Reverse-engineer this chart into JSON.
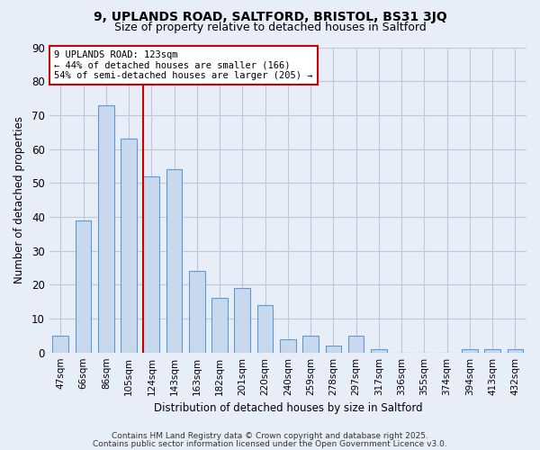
{
  "title1": "9, UPLANDS ROAD, SALTFORD, BRISTOL, BS31 3JQ",
  "title2": "Size of property relative to detached houses in Saltford",
  "xlabel": "Distribution of detached houses by size in Saltford",
  "ylabel": "Number of detached properties",
  "categories": [
    "47sqm",
    "66sqm",
    "86sqm",
    "105sqm",
    "124sqm",
    "143sqm",
    "163sqm",
    "182sqm",
    "201sqm",
    "220sqm",
    "240sqm",
    "259sqm",
    "278sqm",
    "297sqm",
    "317sqm",
    "336sqm",
    "355sqm",
    "374sqm",
    "394sqm",
    "413sqm",
    "432sqm"
  ],
  "values": [
    5,
    39,
    73,
    63,
    52,
    54,
    24,
    16,
    19,
    14,
    4,
    5,
    2,
    5,
    1,
    0,
    0,
    0,
    1,
    1,
    1
  ],
  "bar_color": "#c8d9ed",
  "bar_edge_color": "#5b9bd5",
  "redline_index": 4,
  "annotation_line1": "9 UPLANDS ROAD: 123sqm",
  "annotation_line2": "← 44% of detached houses are smaller (166)",
  "annotation_line3": "54% of semi-detached houses are larger (205) →",
  "annotation_box_color": "#ffffff",
  "annotation_border_color": "#cc0000",
  "ylim": [
    0,
    90
  ],
  "yticks": [
    0,
    10,
    20,
    30,
    40,
    50,
    60,
    70,
    80,
    90
  ],
  "grid_color": "#c0c8d8",
  "background_color": "#e8eef8",
  "footer1": "Contains HM Land Registry data © Crown copyright and database right 2025.",
  "footer2": "Contains public sector information licensed under the Open Government Licence v3.0."
}
